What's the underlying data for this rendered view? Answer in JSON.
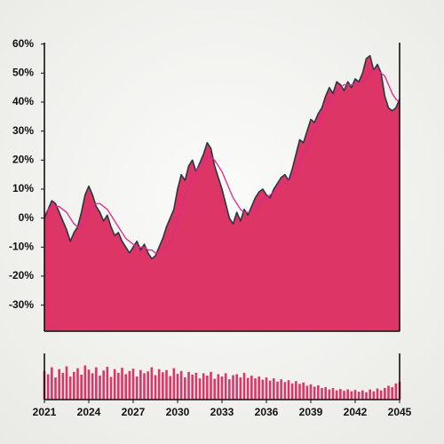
{
  "chart_data": {
    "type": "area",
    "x": [
      2021,
      2021.25,
      2021.5,
      2021.75,
      2022,
      2022.25,
      2022.5,
      2022.75,
      2023,
      2023.25,
      2023.5,
      2023.75,
      2024,
      2024.25,
      2024.5,
      2024.75,
      2025,
      2025.25,
      2025.5,
      2025.75,
      2026,
      2026.25,
      2026.5,
      2026.75,
      2027,
      2027.25,
      2027.5,
      2027.75,
      2028,
      2028.25,
      2028.5,
      2028.75,
      2029,
      2029.25,
      2029.5,
      2029.75,
      2030,
      2030.25,
      2030.5,
      2030.75,
      2031,
      2031.25,
      2031.5,
      2031.75,
      2032,
      2032.25,
      2032.5,
      2032.75,
      2033,
      2033.25,
      2033.5,
      2033.75,
      2034,
      2034.25,
      2034.5,
      2034.75,
      2035,
      2035.25,
      2035.5,
      2035.75,
      2036,
      2036.25,
      2036.5,
      2036.75,
      2037,
      2037.25,
      2037.5,
      2037.75,
      2038,
      2038.25,
      2038.5,
      2038.75,
      2039,
      2039.25,
      2039.5,
      2039.75,
      2040,
      2040.25,
      2040.5,
      2040.75,
      2041,
      2041.25,
      2041.5,
      2041.75,
      2042,
      2042.25,
      2042.5,
      2042.75,
      2043,
      2043.25,
      2043.5,
      2043.75,
      2044,
      2044.25,
      2044.5,
      2044.75,
      2045
    ],
    "series": [
      {
        "color": "#dc3566",
        "line_color": "#263840",
        "values": [
          0,
          3,
          6,
          5,
          2,
          -1,
          -4,
          -8,
          -5,
          -3,
          2,
          8,
          11,
          8,
          4,
          2,
          -1,
          1,
          -3,
          -6,
          -5,
          -8,
          -10,
          -12,
          -10,
          -8,
          -11,
          -9,
          -12,
          -14,
          -13,
          -10,
          -7,
          -3,
          0,
          3,
          10,
          15,
          13,
          18,
          20,
          16,
          19,
          22,
          26,
          24,
          18,
          14,
          10,
          5,
          0,
          -2,
          2,
          -1,
          3,
          1,
          4,
          7,
          9,
          10,
          8,
          7,
          10,
          12,
          14,
          15,
          13,
          17,
          22,
          27,
          26,
          30,
          34,
          33,
          36,
          38,
          42,
          45,
          43,
          47,
          46,
          44,
          47,
          45,
          48,
          47,
          50,
          55,
          56,
          51,
          53,
          50,
          42,
          38,
          37,
          38,
          41
        ]
      },
      {
        "color": "#e0288a",
        "values": [
          1,
          3,
          4,
          4,
          4,
          3,
          2,
          0,
          -2,
          -3,
          -3,
          -1,
          2,
          4,
          5,
          5,
          4,
          3,
          1,
          -1,
          -3,
          -5,
          -7,
          -8,
          -9,
          -10,
          -10,
          -10,
          -11,
          -11,
          -12,
          -12,
          -11,
          -10,
          -8,
          -5,
          -1,
          3,
          7,
          11,
          14,
          16,
          18,
          19,
          21,
          21,
          20,
          18,
          16,
          13,
          10,
          7,
          5,
          3,
          2,
          2,
          2,
          3,
          4,
          6,
          7,
          8,
          9,
          10,
          11,
          12,
          13,
          14,
          16,
          19,
          22,
          24,
          27,
          30,
          32,
          35,
          37,
          40,
          42,
          44,
          45,
          46,
          46,
          46,
          46,
          46,
          47,
          48,
          50,
          51,
          51,
          50,
          49,
          46,
          43,
          41,
          40
        ]
      }
    ],
    "volume": {
      "color": "#dc3566",
      "ylim": [
        0,
        100
      ],
      "values": [
        62,
        55,
        70,
        48,
        66,
        58,
        72,
        50,
        60,
        68,
        54,
        74,
        65,
        57,
        70,
        52,
        63,
        71,
        49,
        66,
        58,
        69,
        55,
        62,
        67,
        50,
        64,
        57,
        61,
        70,
        53,
        66,
        59,
        64,
        51,
        68,
        56,
        62,
        48,
        60,
        54,
        58,
        46,
        57,
        52,
        60,
        45,
        55,
        50,
        57,
        44,
        53,
        55,
        48,
        58,
        47,
        52,
        46,
        50,
        43,
        48,
        41,
        46,
        39,
        44,
        38,
        42,
        35,
        40,
        34,
        37,
        30,
        33,
        28,
        31,
        25,
        27,
        22,
        25,
        20,
        23,
        19,
        22,
        18,
        21,
        17,
        20,
        16,
        22,
        18,
        24,
        20,
        25,
        30,
        27,
        35,
        38
      ]
    },
    "xlim": [
      2021,
      2045
    ],
    "xticks": [
      2021,
      2024,
      2027,
      2030,
      2033,
      2036,
      2039,
      2042,
      2045
    ],
    "ylim": [
      -39,
      60.5
    ],
    "yticks": [
      {
        "value": 60,
        "label": "60%"
      },
      {
        "value": 50,
        "label": "50%"
      },
      {
        "value": 40,
        "label": "40%"
      },
      {
        "value": 30,
        "label": "30%"
      },
      {
        "value": 20,
        "label": "20%"
      },
      {
        "value": 10,
        "label": "10%"
      },
      {
        "value": 0,
        "label": "0%"
      },
      {
        "value": -10,
        "label": "-10%"
      },
      {
        "value": -20,
        "label": "-20%"
      },
      {
        "value": -30,
        "label": "-30%"
      }
    ]
  }
}
